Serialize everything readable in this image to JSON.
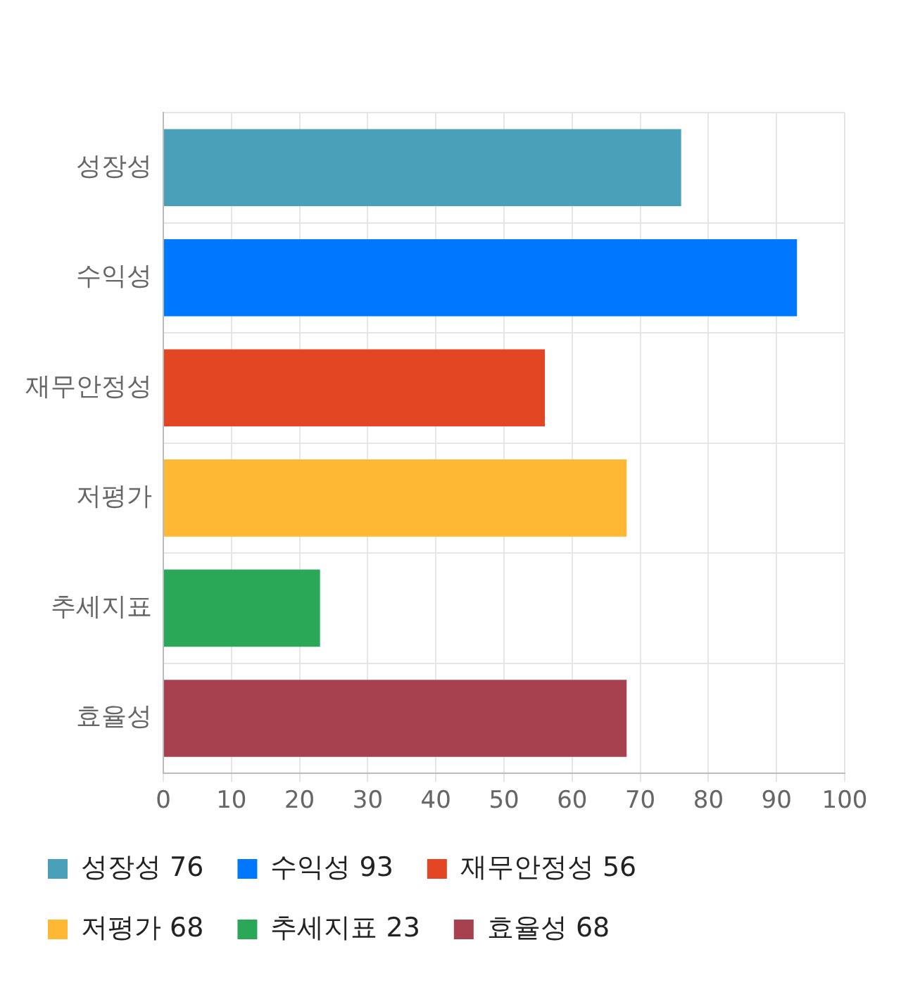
{
  "chart_data": {
    "type": "bar",
    "orientation": "horizontal",
    "stacked": true,
    "categories": [
      "성장성",
      "수익성",
      "재무안정성",
      "저평가",
      "추세지표",
      "효율성"
    ],
    "series": [
      {
        "name": "성장성 76",
        "color": "#4aa0b9",
        "values": [
          76,
          null,
          null,
          null,
          null,
          null
        ]
      },
      {
        "name": "수익성 93",
        "color": "#0077ff",
        "values": [
          null,
          93,
          null,
          null,
          null,
          null
        ]
      },
      {
        "name": "재무안정성 56",
        "color": "#e34623",
        "values": [
          null,
          null,
          56,
          null,
          null,
          null
        ]
      },
      {
        "name": "저평가 68",
        "color": "#ffb833",
        "values": [
          null,
          null,
          null,
          68,
          null,
          null
        ]
      },
      {
        "name": "추세지표 23",
        "color": "#2aa757",
        "values": [
          null,
          null,
          null,
          null,
          23,
          null
        ]
      },
      {
        "name": "효율성 68",
        "color": "#a8414f",
        "values": [
          null,
          null,
          null,
          null,
          null,
          68
        ]
      }
    ],
    "xlim": [
      0,
      100
    ],
    "xticks": [
      0,
      10,
      20,
      30,
      40,
      50,
      60,
      70,
      80,
      90,
      100
    ],
    "grid": true,
    "legend": "bottom"
  }
}
